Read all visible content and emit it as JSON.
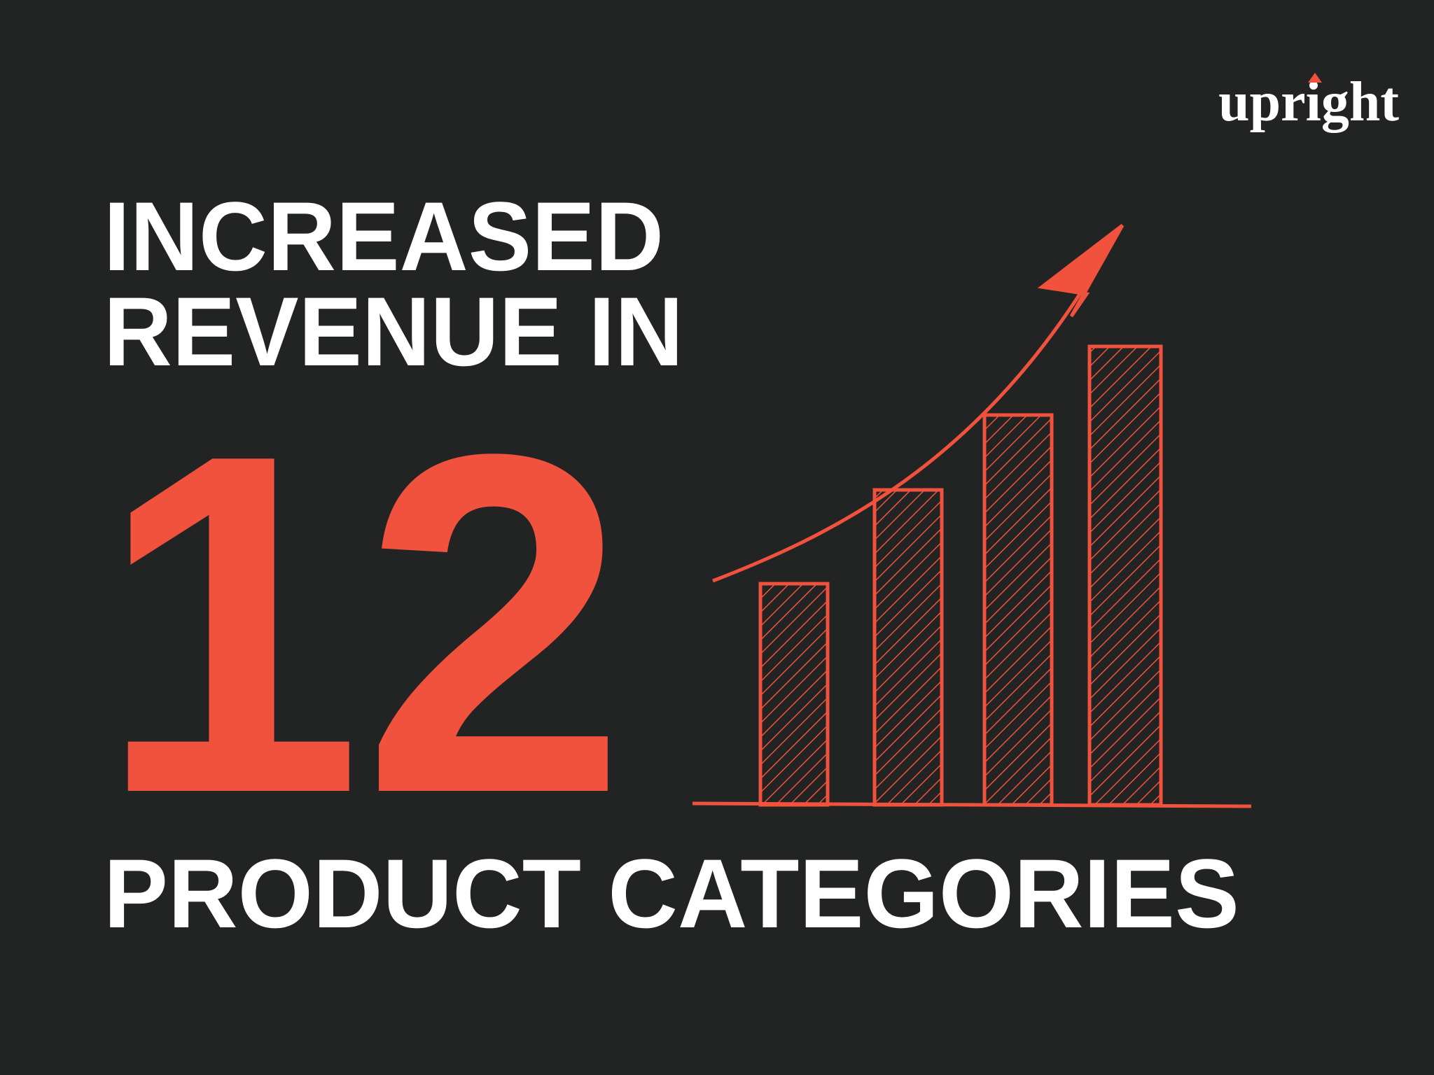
{
  "logo": "upright",
  "headline": {
    "line1": "INCREASED",
    "line2": "REVENUE IN"
  },
  "number": "12",
  "subline": "PRODUCT CATEGORIES"
}
